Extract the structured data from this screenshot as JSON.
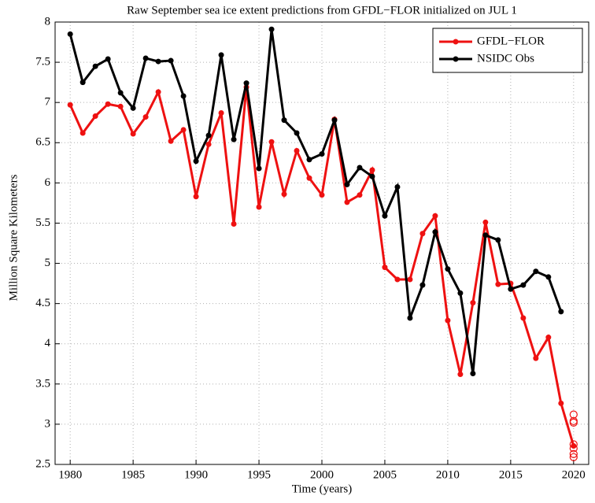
{
  "chart_data": {
    "type": "line",
    "title": "Raw September sea ice extent predictions from GFDL−FLOR initialized on JUL 1",
    "x_label": "Time (years)",
    "y_label": "Million Square Kilometers",
    "x": [
      1980,
      1981,
      1982,
      1983,
      1984,
      1985,
      1986,
      1987,
      1988,
      1989,
      1990,
      1991,
      1992,
      1993,
      1994,
      1995,
      1996,
      1997,
      1998,
      1999,
      2000,
      2001,
      2002,
      2003,
      2004,
      2005,
      2006,
      2007,
      2008,
      2009,
      2010,
      2011,
      2012,
      2013,
      2014,
      2015,
      2016,
      2017,
      2018,
      2019,
      2020
    ],
    "series": [
      {
        "name": "GFDL−FLOR",
        "color": "#ee1111",
        "values": [
          6.97,
          6.62,
          6.83,
          6.98,
          6.95,
          6.61,
          6.82,
          7.13,
          6.52,
          6.66,
          5.83,
          6.48,
          6.87,
          5.49,
          7.19,
          5.7,
          6.51,
          5.86,
          6.4,
          6.06,
          5.85,
          6.79,
          5.76,
          5.85,
          6.16,
          4.95,
          4.8,
          4.8,
          5.37,
          5.59,
          4.29,
          3.62,
          4.51,
          5.51,
          4.74,
          4.75,
          4.32,
          3.82,
          4.08,
          3.26,
          2.73
        ]
      },
      {
        "name": "NSIDC Obs",
        "color": "#000000",
        "values": [
          7.85,
          7.25,
          7.45,
          7.54,
          7.12,
          6.93,
          7.55,
          7.51,
          7.52,
          7.08,
          6.27,
          6.59,
          7.59,
          6.54,
          7.24,
          6.18,
          7.91,
          6.78,
          6.62,
          6.29,
          6.36,
          6.78,
          5.98,
          6.19,
          6.08,
          5.59,
          5.95,
          4.32,
          4.73,
          5.39,
          4.93,
          4.63,
          3.63,
          5.35,
          5.29,
          4.68,
          4.73,
          4.9,
          4.83,
          4.4,
          null
        ]
      },
      {
        "color": "#ee1111",
        "x": [
          2020,
          2020,
          2020,
          2020,
          2020,
          2020,
          2020
        ],
        "values": [
          3.12,
          3.04,
          3.02,
          2.75,
          2.7,
          2.63,
          2.59
        ]
      }
    ],
    "xlim": [
      1978.8,
      2021.2
    ],
    "ylim": [
      2.5,
      8
    ],
    "xticks": [
      1980,
      1985,
      1990,
      1995,
      2000,
      2005,
      2010,
      2015,
      2020
    ],
    "yticks": [
      2.5,
      3,
      3.5,
      4,
      4.5,
      5,
      5.5,
      6,
      6.5,
      7,
      7.5,
      8
    ],
    "grid": true,
    "legend": "upper right"
  }
}
